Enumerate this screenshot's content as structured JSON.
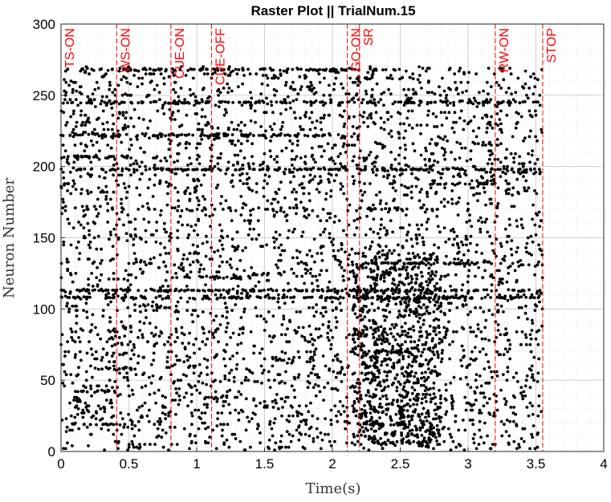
{
  "chart_data": {
    "type": "scatter",
    "title": "Raster Plot || TrialNum.15",
    "xlabel": "Time(s)",
    "ylabel": "Neuron Number",
    "xlim": [
      0,
      4
    ],
    "ylim": [
      0,
      300
    ],
    "xticks": [
      0,
      0.5,
      1,
      1.5,
      2,
      2.5,
      3,
      3.5,
      4
    ],
    "xtick_labels": [
      "0",
      "0.5",
      "1",
      "1.5",
      "2",
      "2.5",
      "3",
      "3.5",
      "4"
    ],
    "yticks": [
      0,
      50,
      100,
      150,
      200,
      250,
      300
    ],
    "ytick_labels": [
      "0",
      "50",
      "100",
      "150",
      "200",
      "250",
      "300"
    ],
    "grid": "minor dotted",
    "marker_color": "#000000",
    "event_color": "#ff0000",
    "events": [
      {
        "label": "TS-ON",
        "time": 0.0
      },
      {
        "label": "WS-ON",
        "time": 0.41
      },
      {
        "label": "CUE-ON",
        "time": 0.81
      },
      {
        "label": "CUE-OFF",
        "time": 1.11
      },
      {
        "label": "GO-ON",
        "time": 2.11
      },
      {
        "label": "SR",
        "time": 2.2
      },
      {
        "label": "RW-ON",
        "time": 3.2
      },
      {
        "label": "STOP",
        "time": 3.55
      }
    ],
    "neuron_range": [
      1,
      270
    ],
    "spike_time_range": [
      0,
      3.55
    ],
    "spike_rows": [
      {
        "neuron": 6,
        "time_start": 2.3,
        "time_end": 2.75
      },
      {
        "neuron": 19,
        "time_start": 0.05,
        "time_end": 0.45
      },
      {
        "neuron": 19,
        "time_start": 2.2,
        "time_end": 2.7
      },
      {
        "neuron": 42,
        "time_start": 0.05,
        "time_end": 0.4
      },
      {
        "neuron": 58,
        "time_start": 0.25,
        "time_end": 0.55
      },
      {
        "neuron": 70,
        "time_start": 2.3,
        "time_end": 2.6
      },
      {
        "neuron": 108,
        "time_start": 0.0,
        "time_end": 3.55
      },
      {
        "neuron": 113,
        "time_start": 0.0,
        "time_end": 3.55
      },
      {
        "neuron": 122,
        "time_start": 0.9,
        "time_end": 1.4
      },
      {
        "neuron": 132,
        "time_start": 2.2,
        "time_end": 3.2
      },
      {
        "neuron": 170,
        "time_start": 2.2,
        "time_end": 2.55
      },
      {
        "neuron": 188,
        "time_start": 2.7,
        "time_end": 3.2
      },
      {
        "neuron": 198,
        "time_start": 0.0,
        "time_end": 3.55
      },
      {
        "neuron": 207,
        "time_start": 0.0,
        "time_end": 0.5
      },
      {
        "neuron": 222,
        "time_start": 0.0,
        "time_end": 2.1
      },
      {
        "neuron": 245,
        "time_start": 0.0,
        "time_end": 3.55
      },
      {
        "neuron": 262,
        "time_start": 2.15,
        "time_end": 2.6
      },
      {
        "neuron": 268,
        "time_start": 0.0,
        "time_end": 2.5
      }
    ]
  }
}
